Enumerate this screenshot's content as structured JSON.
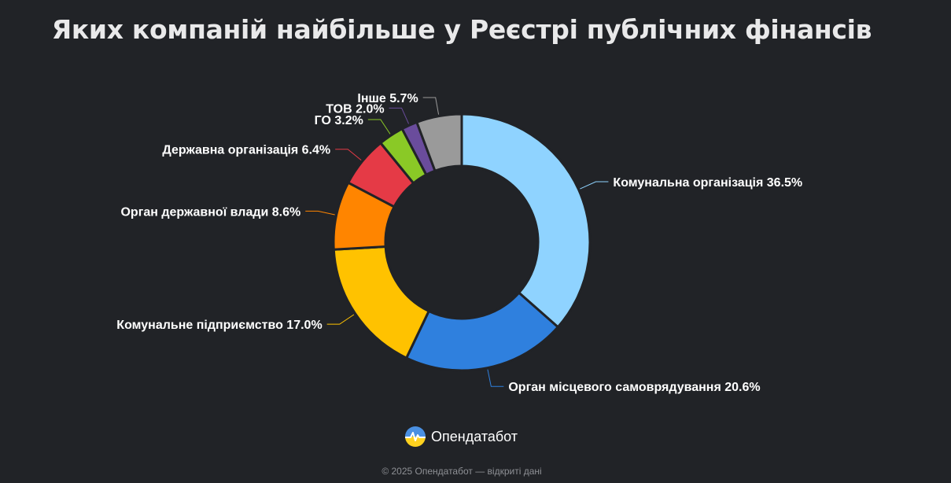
{
  "title": "Яких компаній найбільше у Реєстрі публічних фінансів",
  "chart_data": {
    "type": "donut",
    "slices": [
      {
        "label": "Комунальна організація",
        "value": 36.5,
        "display": "36.5%",
        "color": "#8fd3ff"
      },
      {
        "label": "Орган місцевого самоврядування",
        "value": 20.6,
        "display": "20.6%",
        "color": "#2f80de"
      },
      {
        "label": "Комунальне підприємство",
        "value": 17.0,
        "display": "17.0%",
        "color": "#ffc200"
      },
      {
        "label": "Орган державної влади",
        "value": 8.6,
        "display": "8.6%",
        "color": "#ff8500"
      },
      {
        "label": "Державна організація",
        "value": 6.4,
        "display": "6.4%",
        "color": "#e53a46"
      },
      {
        "label": "ГО",
        "value": 3.2,
        "display": "3.2%",
        "color": "#8ac926"
      },
      {
        "label": "ТОВ",
        "value": 2.0,
        "display": "2.0%",
        "color": "#6a4c9c"
      },
      {
        "label": "Інше",
        "value": 5.7,
        "display": "5.7%",
        "color": "#9a9a9a"
      }
    ]
  },
  "logo": {
    "text": "Опендатабот"
  },
  "footer": "© 2025 Опендатабот — відкриті дані"
}
